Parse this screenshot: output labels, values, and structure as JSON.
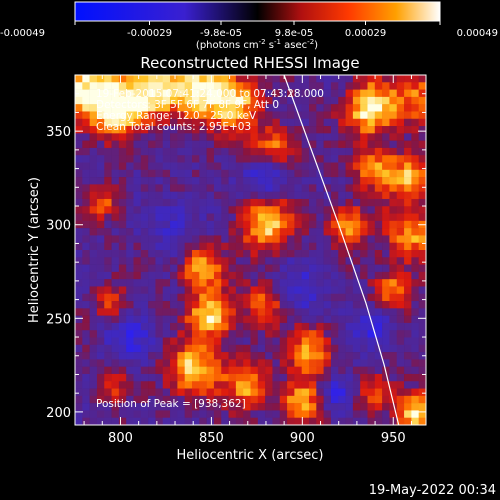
{
  "chart_data": {
    "type": "heatmap",
    "title": "Reconstructed RHESSI Image",
    "xlabel": "Heliocentric X (arcsec)",
    "ylabel": "Heliocentric Y (arcsec)",
    "xlim": [
      775,
      968
    ],
    "ylim": [
      193,
      380
    ],
    "x_ticks": [
      800,
      850,
      900,
      950
    ],
    "y_ticks": [
      200,
      250,
      300,
      350
    ],
    "colorbar": {
      "ticks": [
        "-0.00049",
        "-0.00029",
        "-9.8e-05",
        "9.8e-05",
        "0.00029",
        "0.00049"
      ],
      "range": [
        -0.00049,
        0.00049
      ],
      "label_main": "(photons cm",
      "label_exp1": "-2",
      "label_mid1": " s",
      "label_exp2": "-1",
      "label_mid2": " asec",
      "label_exp3": "-2",
      "label_end": ")"
    },
    "annotations": {
      "time_range": "19-Feb-2015 07:41:24.000 to 07:43:28.000",
      "detectors": "Detectors: 3F 5F 6F 7F 8F 9F, Att 0",
      "energy": "Energy Range: 12.0 - 25.0 keV",
      "clean": "Clean      Total counts: 2.95E+03",
      "peak": "Position of Peak = [938,362]"
    },
    "limb": {
      "points": [
        [
          890,
          380
        ],
        [
          905,
          340
        ],
        [
          920,
          300
        ],
        [
          935,
          258
        ],
        [
          945,
          225
        ],
        [
          953,
          193
        ]
      ]
    },
    "peak_position": [
      938,
      362
    ],
    "image_grid": {
      "nx": 48,
      "ny": 48,
      "seed": 7,
      "sources": [
        [
          782,
          372,
          14,
          0.9
        ],
        [
          800,
          362,
          10,
          0.8
        ],
        [
          818,
          372,
          10,
          0.85
        ],
        [
          845,
          372,
          12,
          0.95
        ],
        [
          864,
          365,
          9,
          0.75
        ],
        [
          884,
          340,
          9,
          0.7
        ],
        [
          938,
          362,
          10,
          1.0
        ],
        [
          965,
          368,
          10,
          0.6
        ],
        [
          940,
          330,
          8,
          0.7
        ],
        [
          960,
          325,
          9,
          0.75
        ],
        [
          880,
          300,
          10,
          0.85
        ],
        [
          925,
          300,
          8,
          0.7
        ],
        [
          960,
          295,
          10,
          0.7
        ],
        [
          790,
          312,
          7,
          0.5
        ],
        [
          795,
          258,
          6,
          0.5
        ],
        [
          845,
          277,
          8,
          0.8
        ],
        [
          850,
          252,
          9,
          0.9
        ],
        [
          880,
          258,
          8,
          0.6
        ],
        [
          950,
          265,
          8,
          0.65
        ],
        [
          840,
          222,
          10,
          0.9
        ],
        [
          870,
          215,
          9,
          0.7
        ],
        [
          905,
          232,
          9,
          0.75
        ],
        [
          900,
          205,
          8,
          0.85
        ],
        [
          940,
          210,
          7,
          0.6
        ],
        [
          962,
          200,
          8,
          0.9
        ],
        [
          795,
          215,
          6,
          0.5
        ]
      ],
      "holes": [
        [
          880,
          327,
          8,
          -0.6
        ],
        [
          900,
          265,
          10,
          -0.35
        ],
        [
          805,
          240,
          9,
          -0.4
        ],
        [
          940,
          245,
          8,
          -0.5
        ],
        [
          830,
          300,
          10,
          -0.3
        ],
        [
          918,
          210,
          7,
          -0.55
        ]
      ]
    }
  },
  "footer": {
    "date_stamp": "19-May-2022 00:34"
  },
  "colors": {
    "background": "#000000",
    "text": "#ffffff",
    "colormap": [
      "#0010ff",
      "#3a20d0",
      "#4a2a9a",
      "#5a2a8a",
      "#9a1a30",
      "#ee1a10",
      "#ff7a00",
      "#ffdc3a",
      "#ffffff"
    ]
  }
}
